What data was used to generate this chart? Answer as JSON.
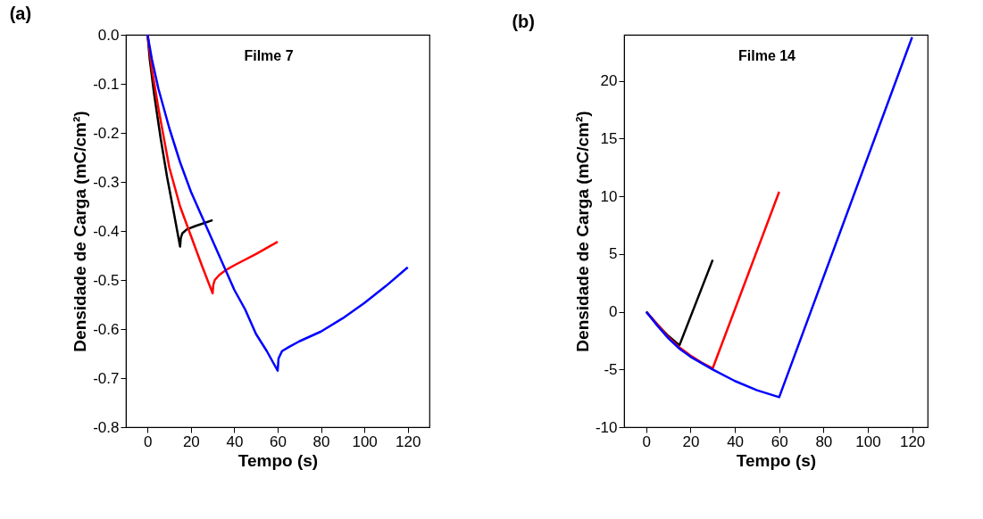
{
  "chart_data": [
    {
      "type": "line",
      "title": "(a)",
      "xlabel": "Tempo (s)",
      "ylabel": "Densidade de Carga (mC/cm²)",
      "annotations": [
        "Filme 7"
      ],
      "xlim": [
        -10,
        130
      ],
      "xticks": [
        0,
        20,
        40,
        60,
        80,
        100,
        120
      ],
      "ylim": [
        -0.8,
        0.0
      ],
      "yticks": [
        {
          "value": -0.8,
          "label": "-0.8"
        },
        {
          "value": -0.7,
          "label": "-0.7"
        },
        {
          "value": -0.6,
          "label": "-0.6"
        },
        {
          "value": -0.5,
          "label": "-0.5"
        },
        {
          "value": -0.4,
          "label": "-0.4"
        },
        {
          "value": -0.3,
          "label": "-0.3"
        },
        {
          "value": -0.2,
          "label": "-0.2"
        },
        {
          "value": -0.1,
          "label": "-0.1"
        },
        {
          "value": 0.0,
          "label": "0.0"
        }
      ],
      "grid": false,
      "legend": false,
      "marker": "none",
      "line_style": "solid",
      "series": [
        {
          "color": "#000000",
          "x": [
            0,
            1,
            3,
            6,
            9,
            12,
            15,
            15.3,
            16,
            18,
            22,
            26,
            30
          ],
          "values": [
            0,
            -0.05,
            -0.12,
            -0.21,
            -0.29,
            -0.36,
            -0.432,
            -0.415,
            -0.405,
            -0.397,
            -0.39,
            -0.384,
            -0.378
          ]
        },
        {
          "color": "#ff0000",
          "x": [
            0,
            2,
            5,
            10,
            15,
            20,
            25,
            30,
            30.3,
            31,
            33,
            36,
            40,
            50,
            60
          ],
          "values": [
            0,
            -0.07,
            -0.15,
            -0.27,
            -0.35,
            -0.41,
            -0.47,
            -0.527,
            -0.51,
            -0.5,
            -0.49,
            -0.48,
            -0.47,
            -0.447,
            -0.422
          ]
        },
        {
          "color": "#0000ff",
          "x": [
            0,
            2,
            5,
            10,
            15,
            20,
            25,
            30,
            35,
            40,
            45,
            50,
            55,
            60,
            60.4,
            62,
            65,
            70,
            80,
            90,
            100,
            110,
            120
          ],
          "values": [
            0,
            -0.05,
            -0.11,
            -0.19,
            -0.26,
            -0.32,
            -0.37,
            -0.42,
            -0.47,
            -0.52,
            -0.56,
            -0.61,
            -0.645,
            -0.685,
            -0.66,
            -0.645,
            -0.637,
            -0.625,
            -0.605,
            -0.578,
            -0.547,
            -0.512,
            -0.474
          ]
        }
      ]
    },
    {
      "type": "line",
      "title": "(b)",
      "xlabel": "Tempo (s)",
      "ylabel": "Densidade de Carga (mC/cm²)",
      "annotations": [
        "Filme 14"
      ],
      "xlim": [
        -10,
        127
      ],
      "xticks": [
        0,
        20,
        40,
        60,
        80,
        100,
        120
      ],
      "ylim": [
        -10,
        24
      ],
      "yticks": [
        -10,
        -5,
        0,
        5,
        10,
        15,
        20
      ],
      "grid": false,
      "legend": false,
      "marker": "none",
      "line_style": "solid",
      "series": [
        {
          "color": "#000000",
          "x": [
            0,
            5,
            10,
            15,
            30
          ],
          "values": [
            0,
            -1.1,
            -2.1,
            -2.9,
            4.5
          ]
        },
        {
          "color": "#ff0000",
          "x": [
            0,
            10,
            15,
            20,
            25,
            30,
            60
          ],
          "values": [
            0,
            -2.2,
            -3.1,
            -3.8,
            -4.4,
            -4.9,
            10.4
          ]
        },
        {
          "color": "#0000ff",
          "x": [
            0,
            5,
            10,
            15,
            20,
            30,
            40,
            50,
            60,
            120
          ],
          "values": [
            0,
            -1.2,
            -2.3,
            -3.2,
            -3.9,
            -5.0,
            -6.0,
            -6.8,
            -7.4,
            23.8
          ]
        }
      ]
    }
  ]
}
